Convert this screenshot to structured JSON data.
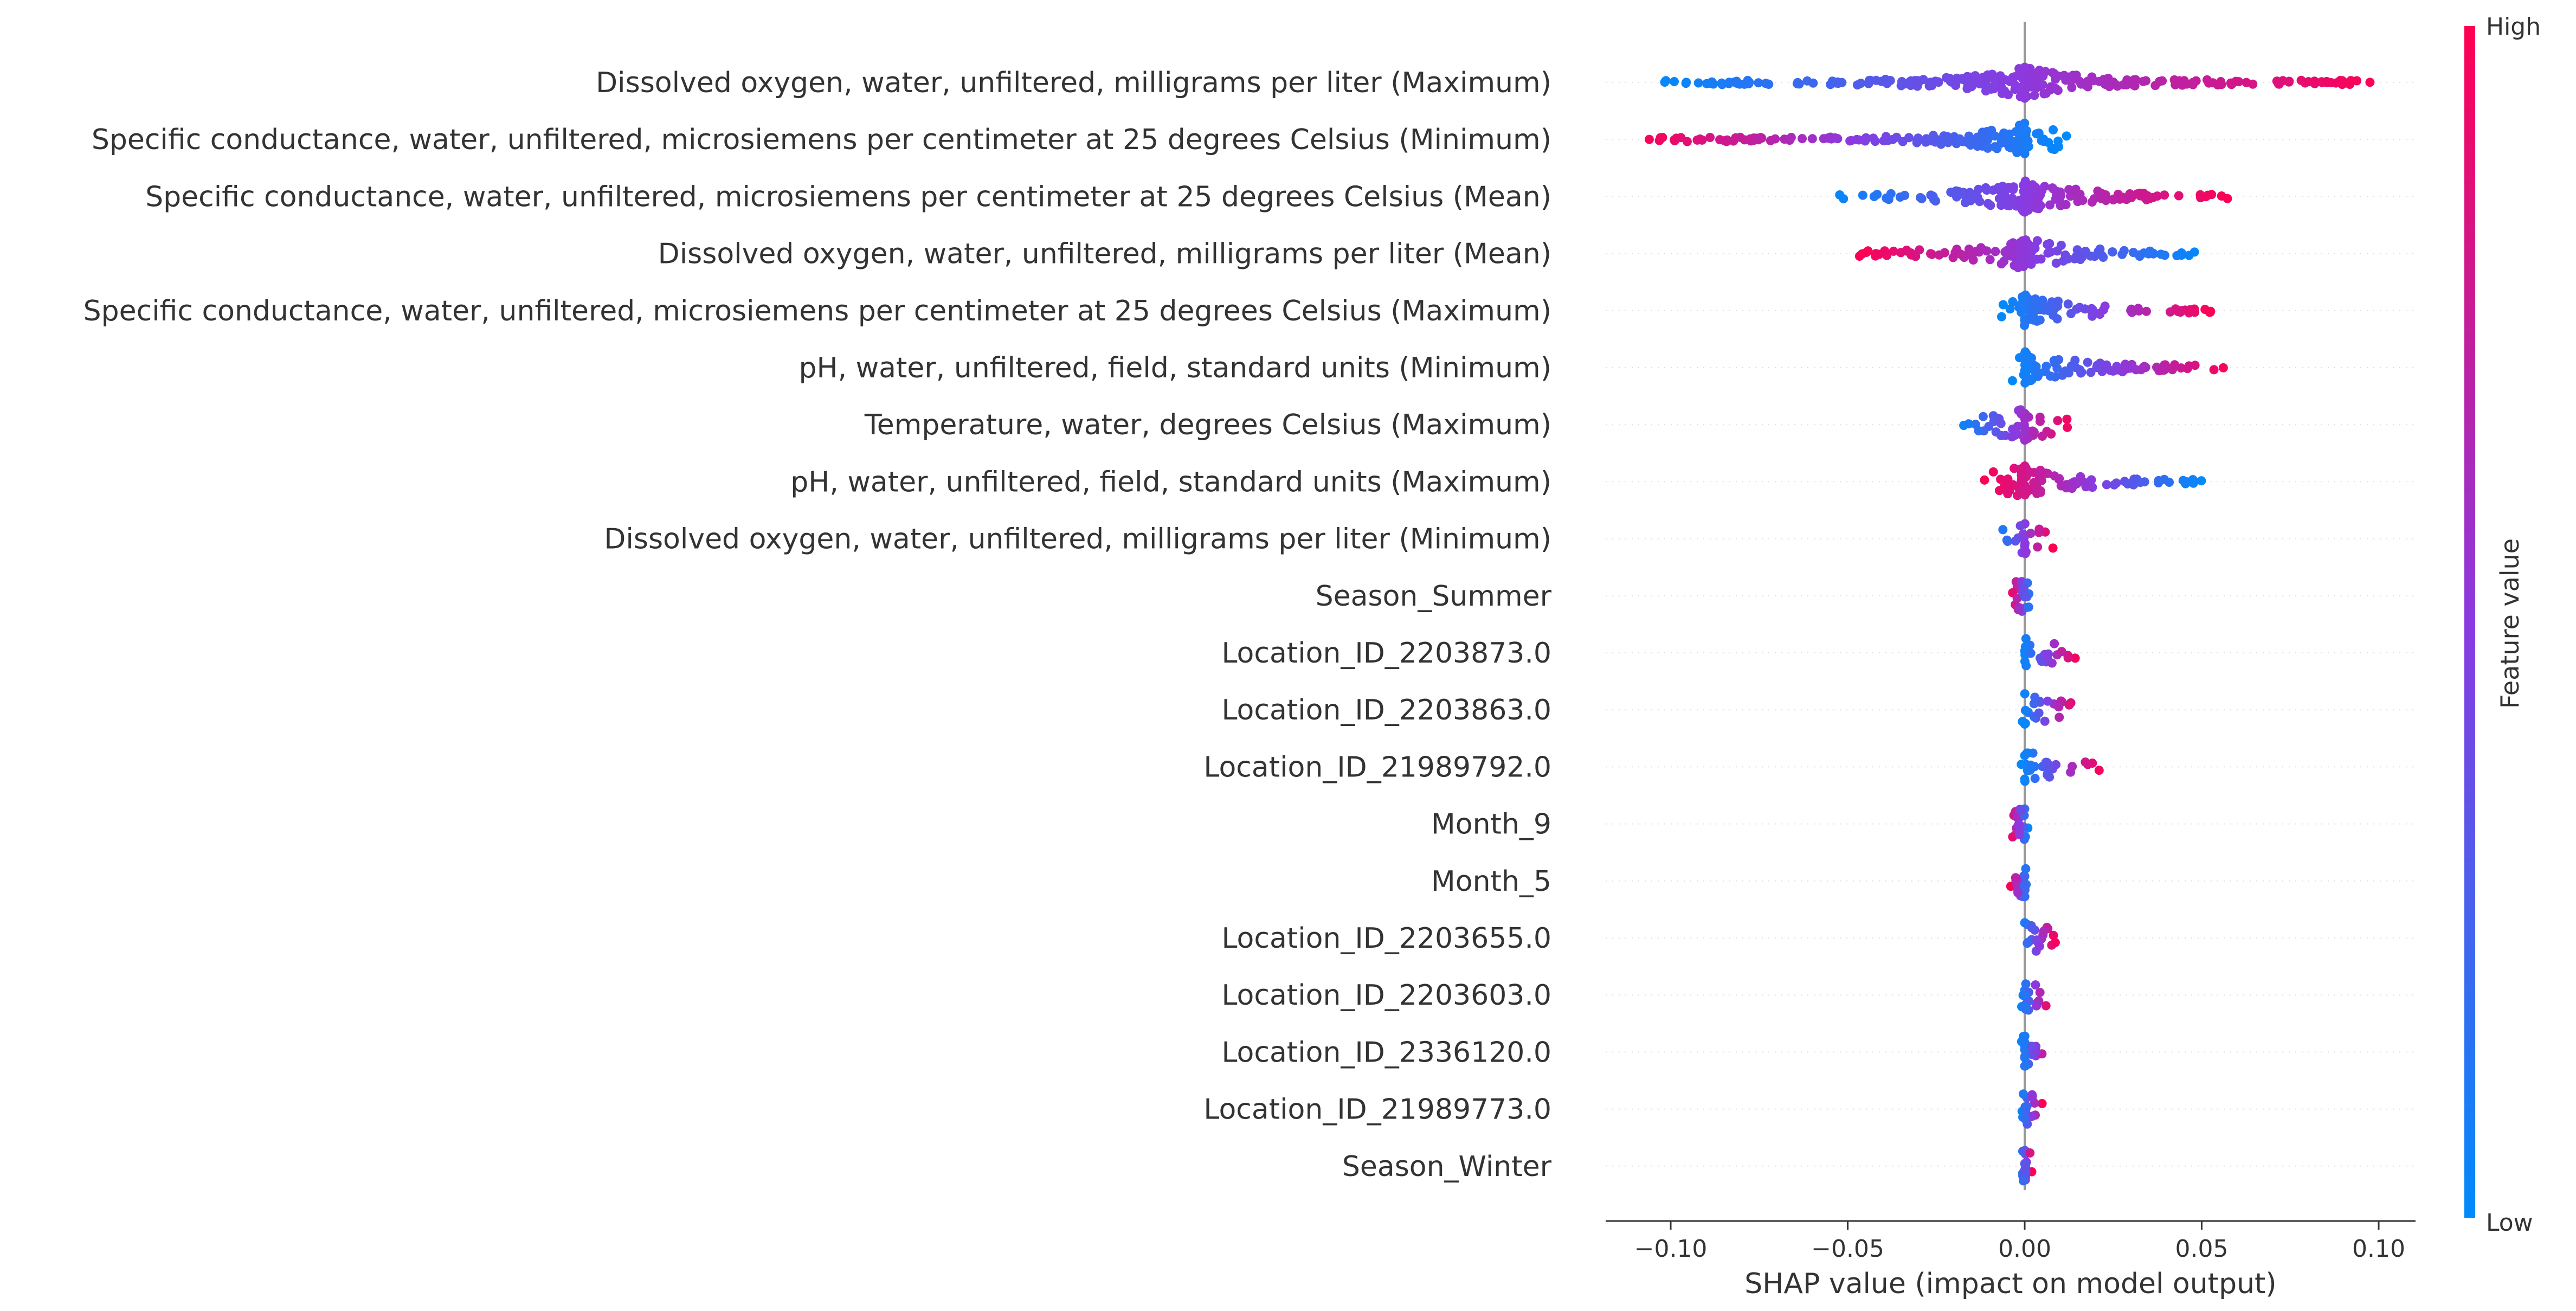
{
  "chart_data": {
    "type": "scatter",
    "subtype": "shap-beeswarm",
    "xlabel": "SHAP value (impact on model output)",
    "xlim": [
      -0.12,
      0.1
    ],
    "xticks": [
      -0.1,
      -0.05,
      0.0,
      0.05,
      0.1
    ],
    "xtick_labels": [
      "−0.10",
      "−0.05",
      "0.00",
      "0.05",
      "0.10"
    ],
    "colorbar": {
      "label": "Feature value",
      "high_label": "High",
      "low_label": "Low",
      "low_color": "#008bfb",
      "high_color": "#ff0052"
    },
    "grid": false,
    "legend": "colorbar-right",
    "features": [
      {
        "name": "Dissolved oxygen, water, unfiltered, milligrams per liter (Maximum)",
        "shap_min": -0.105,
        "shap_max": 0.1,
        "low_side": "left"
      },
      {
        "name": "Specific conductance, water, unfiltered, microsiemens per centimeter at 25 degrees Celsius (Minimum)",
        "shap_min": -0.11,
        "shap_max": 0.012,
        "low_side": "right"
      },
      {
        "name": "Specific conductance, water, unfiltered, microsiemens per centimeter at 25 degrees Celsius (Mean)",
        "shap_min": -0.056,
        "shap_max": 0.058,
        "low_side": "left"
      },
      {
        "name": "Dissolved oxygen, water, unfiltered, milligrams per liter (Mean)",
        "shap_min": -0.047,
        "shap_max": 0.05,
        "low_side": "right"
      },
      {
        "name": "Specific conductance, water, unfiltered, microsiemens per centimeter at 25 degrees Celsius (Maximum)",
        "shap_min": -0.007,
        "shap_max": 0.053,
        "low_side": "left"
      },
      {
        "name": "pH, water, unfiltered, field, standard units (Minimum)",
        "shap_min": -0.004,
        "shap_max": 0.058,
        "low_side": "left"
      },
      {
        "name": "Temperature, water, degrees Celsius (Maximum)",
        "shap_min": -0.019,
        "shap_max": 0.014,
        "low_side": "left"
      },
      {
        "name": "pH, water, unfiltered, field, standard units (Maximum)",
        "shap_min": -0.012,
        "shap_max": 0.05,
        "low_side": "right"
      },
      {
        "name": "Dissolved oxygen, water, unfiltered, milligrams per liter (Minimum)",
        "shap_min": -0.008,
        "shap_max": 0.008,
        "low_side": "left"
      },
      {
        "name": "Season_Summer",
        "shap_min": -0.004,
        "shap_max": 0.002,
        "low_side": "right"
      },
      {
        "name": "Location_ID_2203873.0",
        "shap_min": -0.001,
        "shap_max": 0.015,
        "low_side": "left"
      },
      {
        "name": "Location_ID_2203863.0",
        "shap_min": -0.001,
        "shap_max": 0.015,
        "low_side": "left"
      },
      {
        "name": "Location_ID_21989792.0",
        "shap_min": -0.001,
        "shap_max": 0.022,
        "low_side": "left"
      },
      {
        "name": "Month_9",
        "shap_min": -0.004,
        "shap_max": 0.001,
        "low_side": "right"
      },
      {
        "name": "Month_5",
        "shap_min": -0.004,
        "shap_max": 0.001,
        "low_side": "right"
      },
      {
        "name": "Location_ID_2203655.0",
        "shap_min": -0.001,
        "shap_max": 0.009,
        "low_side": "left"
      },
      {
        "name": "Location_ID_2203603.0",
        "shap_min": -0.001,
        "shap_max": 0.007,
        "low_side": "left"
      },
      {
        "name": "Location_ID_2336120.0",
        "shap_min": -0.001,
        "shap_max": 0.007,
        "low_side": "left"
      },
      {
        "name": "Location_ID_21989773.0",
        "shap_min": -0.001,
        "shap_max": 0.005,
        "low_side": "left"
      },
      {
        "name": "Season_Winter",
        "shap_min": -0.001,
        "shap_max": 0.002,
        "low_side": "left"
      }
    ]
  }
}
